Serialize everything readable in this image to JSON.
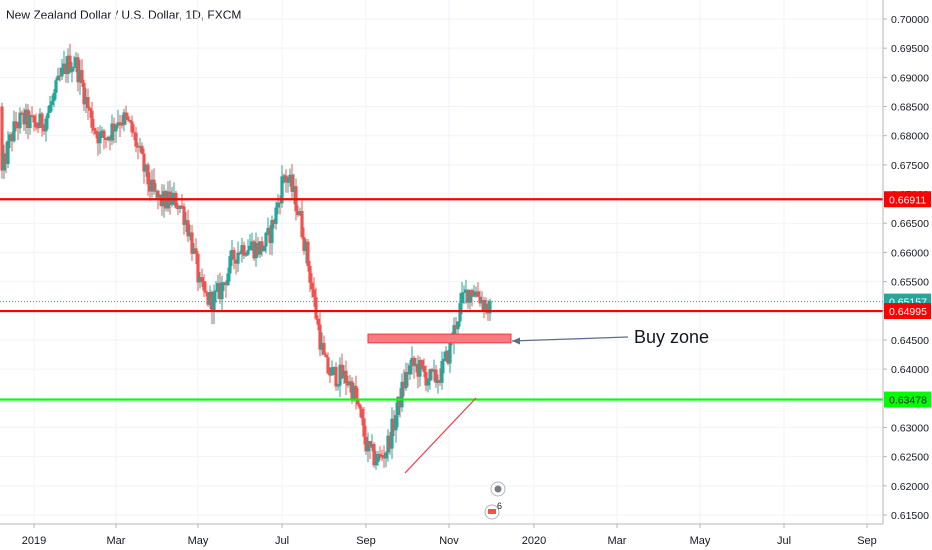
{
  "chart_data": {
    "type": "candlestick",
    "title": "New Zealand Dollar / U.S. Dollar, 1D, FXCM",
    "x_tick_labels": [
      "2019",
      "Mar",
      "May",
      "Jul",
      "Sep",
      "Nov",
      "2020",
      "Mar",
      "May",
      "Jul",
      "Sep"
    ],
    "y_tick_labels": [
      "0.70000",
      "0.69500",
      "0.69000",
      "0.68500",
      "0.68000",
      "0.67500",
      "0.67000",
      "0.66500",
      "0.66000",
      "0.65500",
      "0.65000",
      "0.64500",
      "0.64000",
      "0.63500",
      "0.63000",
      "0.62500",
      "0.62000",
      "0.61500"
    ],
    "ylim": [
      0.6125,
      0.7012
    ],
    "grid": true,
    "colors": {
      "up": "#26a69a",
      "down": "#ef5350",
      "resistance": "#ff0000",
      "support": "#00ff00",
      "zone": "#f77c80"
    },
    "price_labels": [
      {
        "value": "0.66911",
        "price": 0.66911,
        "color": "#ff0000"
      },
      {
        "value": "0.65157",
        "price": 0.65157,
        "color": "#26a69a"
      },
      {
        "value": "0.64995",
        "price": 0.64995,
        "color": "#ff0000"
      },
      {
        "value": "0.63478",
        "price": 0.63478,
        "color": "#00ff00"
      }
    ],
    "horizontal_lines": [
      {
        "name": "resistance-upper",
        "price": 0.66911,
        "color": "#ff0000"
      },
      {
        "name": "resistance-lower",
        "price": 0.64995,
        "color": "#ff0000"
      },
      {
        "name": "support",
        "price": 0.63478,
        "color": "#00ff00"
      }
    ],
    "buy_zone": {
      "label": "Buy zone",
      "price_top": 0.646,
      "price_bottom": 0.6445
    },
    "event_badge": "6",
    "monthly_path": [
      {
        "month": "2019-01",
        "price": 0.68
      },
      {
        "month": "2019-02",
        "price": 0.69
      },
      {
        "month": "2019-03",
        "price": 0.685
      },
      {
        "month": "2019-04",
        "price": 0.67
      },
      {
        "month": "2019-05",
        "price": 0.652
      },
      {
        "month": "2019-06",
        "price": 0.661
      },
      {
        "month": "2019-07",
        "price": 0.674
      },
      {
        "month": "2019-08",
        "price": 0.64
      },
      {
        "month": "2019-09",
        "price": 0.627
      },
      {
        "month": "2019-10",
        "price": 0.64
      },
      {
        "month": "2019-11",
        "price": 0.642
      },
      {
        "month": "2019-12",
        "price": 0.651
      }
    ]
  }
}
